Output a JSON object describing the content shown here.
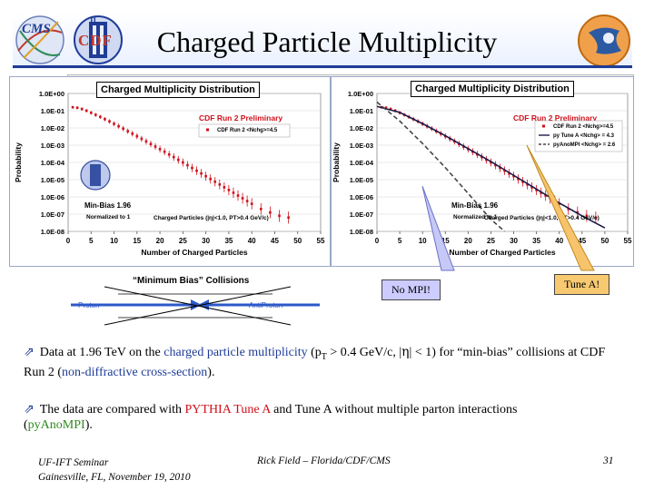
{
  "header": {
    "title": "Charged Particle Multiplicity",
    "cms_logo_text": "CMS",
    "cdf_logo_text": "CDF",
    "cdf_logo_letter": "II"
  },
  "left_chart": {
    "title": "Charged Multiplicity Distribution",
    "preliminary": "CDF Run 2 Preliminary",
    "legend": "CDF Run 2 <Nchg>=4.5",
    "minbias": "Min-Bias 1.96",
    "normalized": "Normalized to 1",
    "cuts": "Charged Particles (|η|<1.0, PT>0.4 GeV/c)",
    "ylabel": "Probability",
    "xlabel": "Number of Charged Particles",
    "ytick_labels": [
      "1.0E+00",
      "1.0E-01",
      "1.0E-02",
      "1.0E-03",
      "1.0E-04",
      "1.0E-05",
      "1.0E-06",
      "1.0E-07",
      "1.0E-08"
    ],
    "xtick_labels": [
      "0",
      "5",
      "10",
      "15",
      "20",
      "25",
      "30",
      "35",
      "40",
      "45",
      "50",
      "55"
    ]
  },
  "right_chart": {
    "title": "Charged Multiplicity Distribution",
    "preliminary": "CDF Run 2 Preliminary",
    "legend": [
      "CDF Run 2 <Nchg>=4.5",
      "py Tune A <Nchg> = 4.3",
      "pyAnoMPI <Nchg> = 2.6"
    ],
    "minbias": "Min-Bias 1.96",
    "normalized": "Normalized to 1",
    "cuts": "Charged Particles (|η|<1.0, PT>0.4 GeV/c)",
    "ylabel": "Probability",
    "xlabel": "Number of Charged Particles",
    "ytick_labels": [
      "1.0E+00",
      "1.0E-01",
      "1.0E-02",
      "1.0E-03",
      "1.0E-04",
      "1.0E-05",
      "1.0E-06",
      "1.0E-07",
      "1.0E-08"
    ],
    "xtick_labels": [
      "0",
      "5",
      "10",
      "15",
      "20",
      "25",
      "30",
      "35",
      "40",
      "45",
      "50",
      "55"
    ]
  },
  "diagram": {
    "title": "“Minimum Bias” Collisions",
    "proton": "Proton",
    "antiproton": "AntiProton"
  },
  "callouts": {
    "no_mpi": "No MPI!",
    "tune_a": "Tune A!"
  },
  "bullets": {
    "b1_a": "Data at 1.96 TeV on the ",
    "b1_b": "charged particle multiplicity",
    "b1_c": " (p",
    "b1_sub": "T",
    "b1_d": " > 0.4 GeV/c, |",
    "b1_eta": "η",
    "b1_e": "| < 1) for “min-bias” collisions at CDF Run 2 (",
    "b1_f": "non-diffractive cross-section",
    "b1_g": ").",
    "b2_a": "The data are compared with ",
    "b2_b": "PYTHIA Tune A",
    "b2_c": " and Tune A without multiple parton interactions (",
    "b2_d": "pyAnoMPI",
    "b2_e": ")."
  },
  "footer": {
    "seminar_line1": "UF-IFT Seminar",
    "seminar_line2": "Gainesville, FL,  November 19, 2010",
    "author": "Rick Field – Florida/CDF/CMS",
    "page": "31"
  },
  "colors": {
    "accent": "#1f3c97",
    "data_red": "#d0101a",
    "title_blue": "#1e3c96",
    "tune_green": "#2f8a1d"
  },
  "chart_data": [
    {
      "type": "scatter",
      "title": "Charged Multiplicity Distribution",
      "xlabel": "Number of Charged Particles",
      "ylabel": "Probability",
      "xlim": [
        0,
        55
      ],
      "ylim_log10": [
        -8,
        0
      ],
      "series": [
        {
          "name": "CDF Run 2 <Nchg>=4.5",
          "x": [
            1,
            2,
            3,
            4,
            5,
            6,
            7,
            8,
            9,
            10,
            11,
            12,
            13,
            14,
            15,
            16,
            17,
            18,
            19,
            20,
            21,
            22,
            23,
            24,
            25,
            26,
            27,
            28,
            29,
            30,
            31,
            32,
            33,
            34,
            35,
            36,
            37,
            38,
            39,
            40,
            42,
            44,
            46,
            48
          ],
          "log10_y": [
            -0.8,
            -0.83,
            -0.9,
            -1.0,
            -1.12,
            -1.24,
            -1.36,
            -1.49,
            -1.62,
            -1.76,
            -1.9,
            -2.04,
            -2.19,
            -2.33,
            -2.48,
            -2.63,
            -2.78,
            -2.93,
            -3.08,
            -3.23,
            -3.38,
            -3.54,
            -3.69,
            -3.85,
            -4.0,
            -4.16,
            -4.32,
            -4.48,
            -4.64,
            -4.8,
            -4.96,
            -5.12,
            -5.28,
            -5.44,
            -5.6,
            -5.76,
            -5.92,
            -6.08,
            -6.24,
            -6.4,
            -6.7,
            -6.9,
            -7.1,
            -7.2
          ]
        }
      ]
    },
    {
      "type": "line",
      "title": "Charged Multiplicity Distribution",
      "xlabel": "Number of Charged Particles",
      "ylabel": "Probability",
      "xlim": [
        0,
        55
      ],
      "ylim_log10": [
        -8,
        0
      ],
      "series": [
        {
          "name": "CDF Run 2 <Nchg>=4.5",
          "x": [
            1,
            2,
            3,
            4,
            5,
            6,
            7,
            8,
            9,
            10,
            11,
            12,
            13,
            14,
            15,
            16,
            17,
            18,
            19,
            20,
            21,
            22,
            23,
            24,
            25,
            26,
            27,
            28,
            29,
            30,
            31,
            32,
            33,
            34,
            35,
            36,
            37,
            38,
            39,
            40,
            42,
            44,
            46,
            48
          ],
          "log10_y": [
            -0.8,
            -0.83,
            -0.9,
            -1.0,
            -1.12,
            -1.24,
            -1.36,
            -1.49,
            -1.62,
            -1.76,
            -1.9,
            -2.04,
            -2.19,
            -2.33,
            -2.48,
            -2.63,
            -2.78,
            -2.93,
            -3.08,
            -3.23,
            -3.38,
            -3.54,
            -3.69,
            -3.85,
            -4.0,
            -4.16,
            -4.32,
            -4.48,
            -4.64,
            -4.8,
            -4.96,
            -5.12,
            -5.28,
            -5.44,
            -5.6,
            -5.76,
            -5.92,
            -6.08,
            -6.24,
            -6.4,
            -6.7,
            -6.9,
            -7.1,
            -7.2
          ]
        },
        {
          "name": "py Tune A <Nchg> = 4.3",
          "x": [
            0,
            5,
            10,
            15,
            20,
            25,
            30,
            35,
            40,
            45,
            50
          ],
          "log10_y": [
            -0.75,
            -1.1,
            -1.75,
            -2.45,
            -3.2,
            -3.95,
            -4.75,
            -5.55,
            -6.35,
            -7.1,
            -7.8
          ]
        },
        {
          "name": "pyAnoMPI <Nchg> = 2.6",
          "x": [
            0,
            5,
            10,
            15,
            20,
            25,
            28
          ],
          "log10_y": [
            -0.5,
            -1.6,
            -2.9,
            -4.3,
            -5.8,
            -7.3,
            -8.0
          ]
        }
      ]
    }
  ]
}
